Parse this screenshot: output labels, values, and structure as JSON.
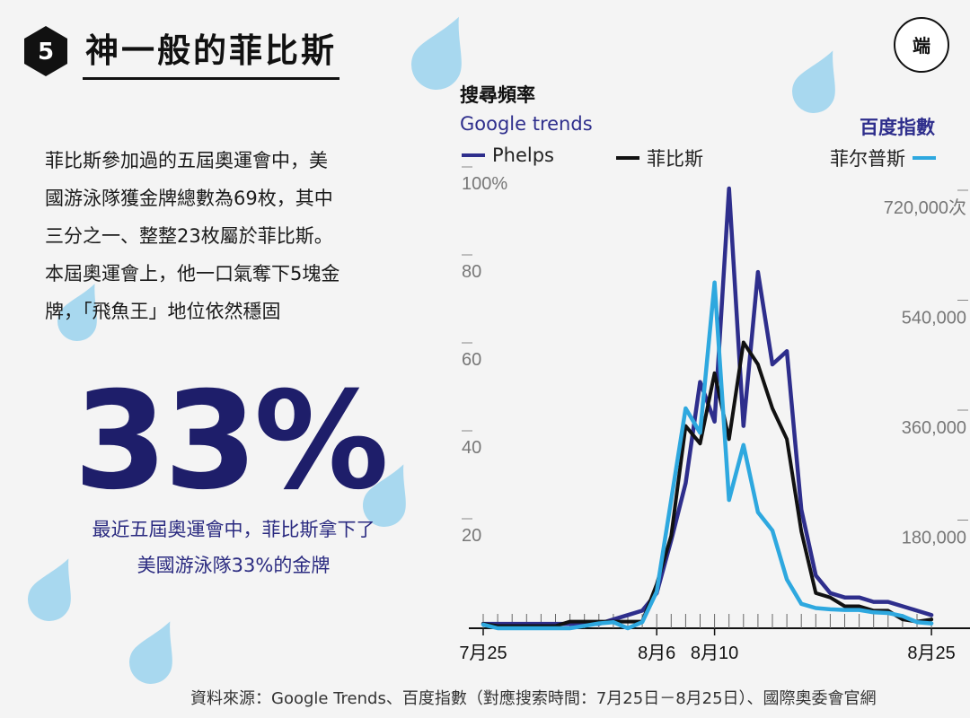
{
  "title": {
    "number": "5",
    "text": "神一般的菲比斯"
  },
  "logo": {
    "text": "端"
  },
  "body_lines": [
    "菲比斯參加過的五屆奧運會中，美",
    "國游泳隊獲金牌總數為69枚，其中",
    "三分之一、整整23枚屬於菲比斯。",
    "本屆奧運會上，他一口氣奪下5塊金",
    "牌，「飛魚王」地位依然穩固"
  ],
  "big_number": "33%",
  "caption_lines": [
    "最近五屆奧運會中，菲比斯拿下了",
    "美國游泳隊33%的金牌"
  ],
  "source": "資料來源：Google Trends、百度指數（對應搜索時間：7月25日－8月25日）、國際奧委會官網",
  "colors": {
    "phelps": "#2e2e8c",
    "feibisi": "#111111",
    "feier": "#2ea8df",
    "big_number": "#1e1e6a",
    "droplet": "#a8d8ef"
  },
  "chart_data": {
    "type": "line",
    "header": "搜尋頻率",
    "left_axis_title": "Google trends",
    "right_axis_title": "百度指數",
    "x_tick_labels": [
      "7月25",
      "8月6",
      "8月10",
      "8月25"
    ],
    "x_tick_days": [
      0,
      12,
      16,
      31
    ],
    "left_ticks": [
      "100%",
      "80",
      "60",
      "40",
      "20"
    ],
    "left_tick_values": [
      100,
      80,
      60,
      40,
      20
    ],
    "left_ylim": [
      0,
      100
    ],
    "right_ticks": [
      "720,000次",
      "540,000",
      "360,000",
      "180,000"
    ],
    "right_tick_values": [
      720000,
      540000,
      360000,
      180000
    ],
    "right_ylim": [
      0,
      720000
    ],
    "series": [
      {
        "name": "Phelps",
        "axis": "left",
        "color": "#2e2e8c",
        "values": [
          1,
          1,
          1,
          1,
          1,
          1,
          1,
          1,
          1,
          2,
          3,
          4,
          8,
          20,
          33,
          56,
          47,
          100,
          46,
          81,
          60,
          63,
          27,
          12,
          8,
          7,
          7,
          6,
          6,
          5,
          4,
          3
        ]
      },
      {
        "name": "菲比斯",
        "axis": "left",
        "color": "#111111",
        "values": [
          1,
          0.5,
          0.5,
          0.5,
          0.5,
          0.5,
          1.5,
          1.5,
          1.5,
          1.5,
          1.5,
          1.5,
          10,
          21,
          46,
          42,
          58,
          43,
          65,
          60,
          50,
          43,
          22,
          8,
          7,
          5,
          5,
          4,
          4,
          2,
          1.5,
          2
        ]
      },
      {
        "name": "菲尔普斯",
        "axis": "right",
        "color": "#2ea8df",
        "values": [
          6000,
          0,
          0,
          0,
          0,
          0,
          0,
          4000,
          8000,
          10000,
          0,
          10000,
          60000,
          210000,
          360000,
          320000,
          566000,
          210000,
          300000,
          190000,
          160000,
          80000,
          40000,
          33000,
          31000,
          30000,
          30000,
          26000,
          25000,
          20000,
          10000,
          8000
        ]
      }
    ]
  }
}
